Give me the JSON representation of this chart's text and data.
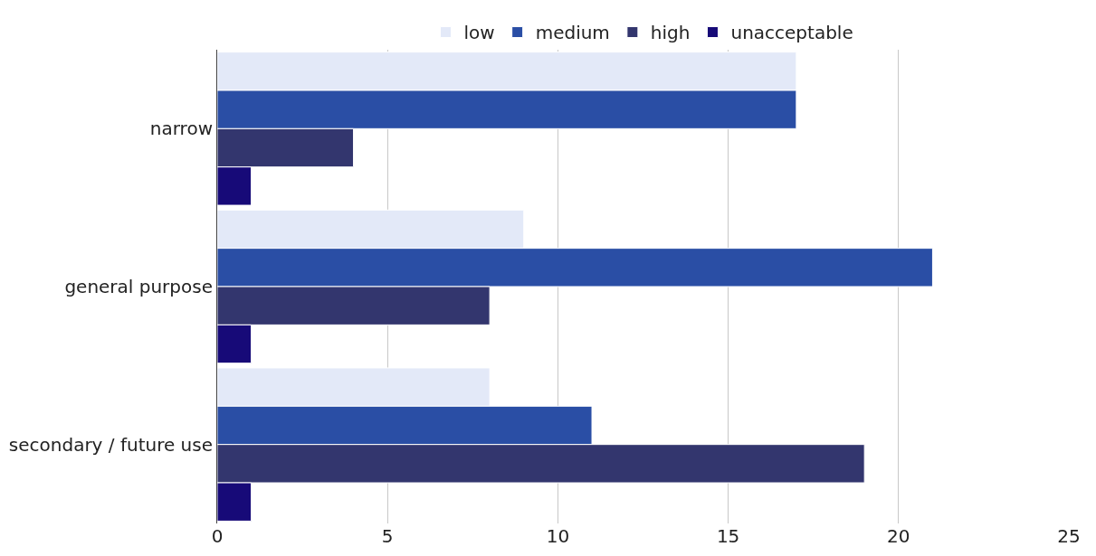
{
  "chart_data": {
    "type": "bar",
    "orientation": "horizontal",
    "categories": [
      "narrow",
      "general purpose",
      "secondary / future use"
    ],
    "series": [
      {
        "name": "low",
        "color": "#e3e9f8",
        "values": [
          17,
          9,
          8
        ]
      },
      {
        "name": "medium",
        "color": "#2a4ea5",
        "values": [
          17,
          21,
          11
        ]
      },
      {
        "name": "high",
        "color": "#33366e",
        "values": [
          4,
          8,
          19
        ]
      },
      {
        "name": "unacceptable",
        "color": "#170a78",
        "values": [
          1,
          1,
          1
        ]
      }
    ],
    "xlim": [
      0,
      25
    ],
    "xticks": [
      0,
      5,
      10,
      15,
      20,
      25
    ],
    "grid": "x",
    "legend": "top"
  }
}
